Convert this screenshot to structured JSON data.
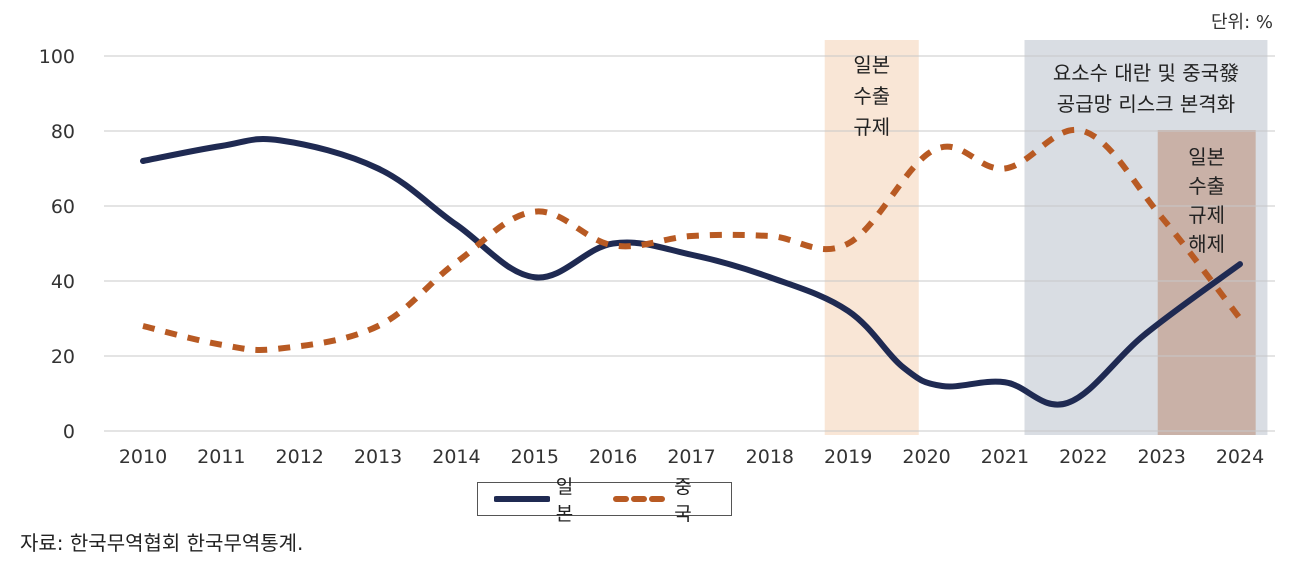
{
  "chart_data": {
    "type": "line",
    "unit_label": "단위: %",
    "x": [
      "2010",
      "2011",
      "2012",
      "2013",
      "2014",
      "2015",
      "2016",
      "2017",
      "2018",
      "2019",
      "2020",
      "2021",
      "2022",
      "2023",
      "2024"
    ],
    "yticks": [
      "100",
      "80",
      "60",
      "40",
      "20",
      "0"
    ],
    "ylim": [
      0,
      100
    ],
    "series": [
      {
        "name": "일본",
        "color": "#1f2a52",
        "style": "solid",
        "points": [
          [
            2010,
            72
          ],
          [
            2011,
            76
          ],
          [
            2011.75,
            77.5
          ],
          [
            2013,
            70
          ],
          [
            2014,
            55
          ],
          [
            2015,
            41
          ],
          [
            2016,
            50
          ],
          [
            2017,
            47
          ],
          [
            2018,
            41
          ],
          [
            2019,
            32
          ],
          [
            2019.7,
            17
          ],
          [
            2020.2,
            12
          ],
          [
            2021,
            13
          ],
          [
            2021.8,
            7.5
          ],
          [
            2022.8,
            26
          ],
          [
            2024,
            44.5
          ]
        ]
      },
      {
        "name": "중국",
        "color": "#b85a23",
        "style": "dashed",
        "points": [
          [
            2010,
            28
          ],
          [
            2011,
            23
          ],
          [
            2011.75,
            22
          ],
          [
            2013,
            28
          ],
          [
            2014,
            45
          ],
          [
            2015,
            58.5
          ],
          [
            2016,
            49.5
          ],
          [
            2017,
            52
          ],
          [
            2018,
            52
          ],
          [
            2019,
            50
          ],
          [
            2020.1,
            75
          ],
          [
            2021,
            70
          ],
          [
            2022,
            80
          ],
          [
            2023,
            57
          ],
          [
            2024,
            30
          ]
        ]
      }
    ],
    "annotations": [
      {
        "label_lines": [
          "일본",
          "수출",
          "규제"
        ],
        "x_from": 2018.7,
        "x_to": 2019.9,
        "color": "#f9e6d6"
      },
      {
        "label_lines": [
          "요소수 대란 및 중국發",
          "공급망 리스크 본격화"
        ],
        "x_from": 2021.25,
        "x_to": 2024.35,
        "color": "#d9dde3"
      },
      {
        "label_lines": [
          "일본",
          "수출",
          "규제",
          "해제"
        ],
        "x_from": 2022.95,
        "x_to": 2024.2,
        "color": "#c9b1a7"
      }
    ],
    "legend": [
      "일본",
      "중국"
    ]
  },
  "legend": {
    "japan": "일본",
    "china": "중국"
  },
  "source": "자료: 한국무역협회 한국무역통계."
}
